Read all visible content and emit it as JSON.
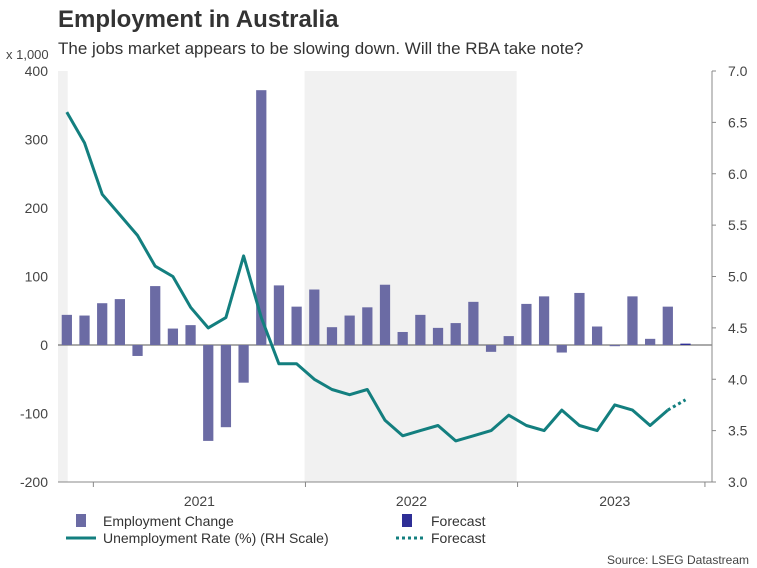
{
  "title": "Employment in Australia",
  "subtitle": "The jobs market appears to be slowing down. Will the RBA take note?",
  "source": "Source: LSEG Datastream",
  "colors": {
    "bars": "#6b6ba4",
    "forecast_bar": "#2e2e96",
    "line": "#137f7f",
    "shade": "#f1f1f1",
    "axis": "#888888"
  },
  "chart_data": {
    "type": "bar",
    "title": "Employment in Australia",
    "subtitle": "The jobs market appears to be slowing down. Will the RBA take note?",
    "left_axis": {
      "label": "x 1,000",
      "range": [
        -200,
        400
      ],
      "ticks": [
        "-200",
        "-100",
        "0",
        "100",
        "200",
        "300",
        "400"
      ]
    },
    "right_axis": {
      "label": "",
      "range": [
        3.0,
        7.0
      ],
      "ticks": [
        "3.0",
        "3.5",
        "4.0",
        "4.5",
        "5.0",
        "5.5",
        "6.0",
        "6.5",
        "7.0"
      ]
    },
    "x_labels": [
      "2021",
      "2022",
      "2023"
    ],
    "months": [
      "2020-11",
      "2020-12",
      "2021-01",
      "2021-02",
      "2021-03",
      "2021-04",
      "2021-05",
      "2021-06",
      "2021-07",
      "2021-08",
      "2021-09",
      "2021-10",
      "2021-11",
      "2021-12",
      "2022-01",
      "2022-02",
      "2022-03",
      "2022-04",
      "2022-05",
      "2022-06",
      "2022-07",
      "2022-08",
      "2022-09",
      "2022-10",
      "2022-11",
      "2022-12",
      "2023-01",
      "2023-02",
      "2023-03",
      "2023-04",
      "2023-05",
      "2023-06",
      "2023-07",
      "2023-08",
      "2023-09",
      "2023-10",
      "2023-11"
    ],
    "shaded_years": [
      "2021",
      "2022"
    ],
    "series": [
      {
        "name": "Employment Change",
        "axis": "left",
        "kind": "bar",
        "values": [
          44,
          43,
          61,
          67,
          -16,
          86,
          24,
          29,
          -140,
          -120,
          -55,
          372,
          87,
          56,
          81,
          26,
          43,
          55,
          88,
          19,
          44,
          25,
          32,
          63,
          -10,
          13,
          60,
          71,
          -11,
          76,
          27,
          0,
          71,
          9,
          56,
          null,
          null
        ]
      },
      {
        "name": "Forecast",
        "axis": "left",
        "kind": "bar-forecast",
        "values": [
          null,
          null,
          null,
          null,
          null,
          null,
          null,
          null,
          null,
          null,
          null,
          null,
          null,
          null,
          null,
          null,
          null,
          null,
          null,
          null,
          null,
          null,
          null,
          null,
          null,
          null,
          null,
          null,
          null,
          null,
          null,
          null,
          null,
          null,
          null,
          2,
          null
        ]
      },
      {
        "name": "Unemployment Rate (%) (RH Scale)",
        "axis": "right",
        "kind": "line",
        "values": [
          6.6,
          6.3,
          5.8,
          5.6,
          5.4,
          5.1,
          5.0,
          4.7,
          4.5,
          4.6,
          5.2,
          4.6,
          4.15,
          4.15,
          4.0,
          3.9,
          3.85,
          3.9,
          3.6,
          3.45,
          3.5,
          3.55,
          3.4,
          3.45,
          3.5,
          3.65,
          3.55,
          3.5,
          3.7,
          3.55,
          3.5,
          3.75,
          3.7,
          3.55,
          3.7,
          null,
          null
        ]
      },
      {
        "name": "Forecast",
        "axis": "right",
        "kind": "line-forecast",
        "values": [
          null,
          null,
          null,
          null,
          null,
          null,
          null,
          null,
          null,
          null,
          null,
          null,
          null,
          null,
          null,
          null,
          null,
          null,
          null,
          null,
          null,
          null,
          null,
          null,
          null,
          null,
          null,
          null,
          null,
          null,
          null,
          null,
          null,
          null,
          3.7,
          3.8,
          null
        ]
      }
    ],
    "grid": false
  },
  "legend": {
    "employment": "Employment Change",
    "forecast_bar": "Forecast",
    "unemployment": "Unemployment Rate (%) (RH Scale)",
    "forecast_line": "Forecast"
  }
}
